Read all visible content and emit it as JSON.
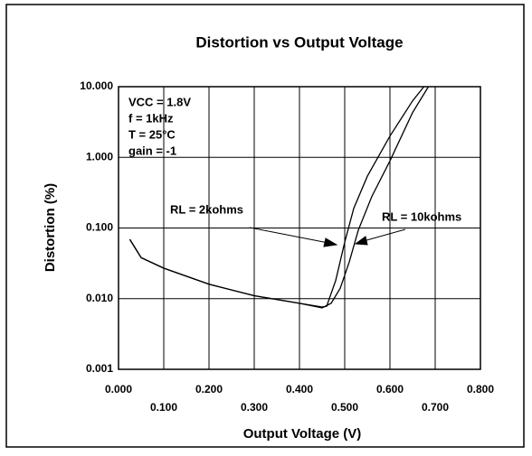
{
  "chart_data": {
    "type": "line",
    "title": "Distortion vs Output Voltage",
    "x_label": "Output Voltage (V)",
    "y_label": "Distortion (%)",
    "y_scale": "log",
    "grid": true,
    "xlim": [
      0,
      0.8
    ],
    "ylim": [
      0.001,
      10
    ],
    "xticks": [
      {
        "value": 0,
        "label": "0.000"
      },
      {
        "value": 0.1,
        "label": "0.100"
      },
      {
        "value": 0.2,
        "label": "0.200"
      },
      {
        "value": 0.3,
        "label": "0.300"
      },
      {
        "value": 0.4,
        "label": "0.400"
      },
      {
        "value": 0.5,
        "label": "0.500"
      },
      {
        "value": 0.6,
        "label": "0.600"
      },
      {
        "value": 0.7,
        "label": "0.700"
      },
      {
        "value": 0.8,
        "label": "0.800"
      }
    ],
    "yticks": [
      {
        "value": 0.001,
        "label": "0.001"
      },
      {
        "value": 0.01,
        "label": "0.010"
      },
      {
        "value": 0.1,
        "label": "0.100"
      },
      {
        "value": 1,
        "label": "1.000"
      },
      {
        "value": 10,
        "label": "10.000"
      }
    ],
    "annotations": [
      "VCC = 1.8V",
      "f = 1kHz",
      "T = 25°C",
      "gain = -1"
    ],
    "series": [
      {
        "name": "RL = 2kohms",
        "color": "#000000",
        "x": [
          0.025,
          0.05,
          0.1,
          0.2,
          0.3,
          0.4,
          0.45,
          0.46,
          0.48,
          0.5,
          0.52,
          0.55,
          0.6,
          0.65,
          0.675
        ],
        "values": [
          0.069,
          0.038,
          0.027,
          0.016,
          0.011,
          0.0086,
          0.0076,
          0.0078,
          0.018,
          0.063,
          0.19,
          0.54,
          2.0,
          6.3,
          10
        ]
      },
      {
        "name": "RL = 10kohms",
        "color": "#000000",
        "x": [
          0.025,
          0.05,
          0.1,
          0.2,
          0.3,
          0.4,
          0.45,
          0.47,
          0.49,
          0.51,
          0.53,
          0.56,
          0.6,
          0.65,
          0.685
        ],
        "values": [
          0.069,
          0.038,
          0.027,
          0.016,
          0.011,
          0.0086,
          0.0074,
          0.0086,
          0.014,
          0.033,
          0.093,
          0.28,
          0.89,
          4.3,
          10
        ]
      }
    ]
  }
}
